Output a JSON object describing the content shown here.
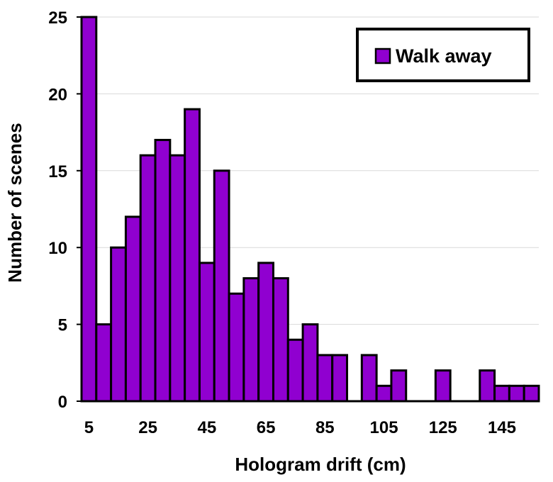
{
  "chart_data": {
    "type": "bar",
    "title": "",
    "xlabel": "Hologram drift (cm)",
    "ylabel": "Number of scenes",
    "ylim": [
      0,
      25
    ],
    "yticks": [
      "0",
      "5",
      "10",
      "15",
      "20",
      "25"
    ],
    "xticks": [
      "5",
      "25",
      "45",
      "65",
      "85",
      "105",
      "125",
      "145"
    ],
    "grid": "horizontal",
    "legend_position": "top-right",
    "bar_color": "#9000D0",
    "series": [
      {
        "name": "Walk away",
        "x": [
          5,
          10,
          15,
          20,
          25,
          30,
          35,
          40,
          45,
          50,
          55,
          60,
          65,
          70,
          75,
          80,
          85,
          90,
          95,
          100,
          105,
          110,
          115,
          120,
          125,
          130,
          135,
          140,
          145,
          150,
          155
        ],
        "values": [
          25,
          5,
          10,
          12,
          16,
          17,
          16,
          19,
          9,
          15,
          7,
          8,
          9,
          8,
          4,
          5,
          3,
          3,
          0,
          3,
          1,
          2,
          0,
          0,
          2,
          0,
          0,
          2,
          1,
          1,
          1
        ]
      }
    ]
  }
}
